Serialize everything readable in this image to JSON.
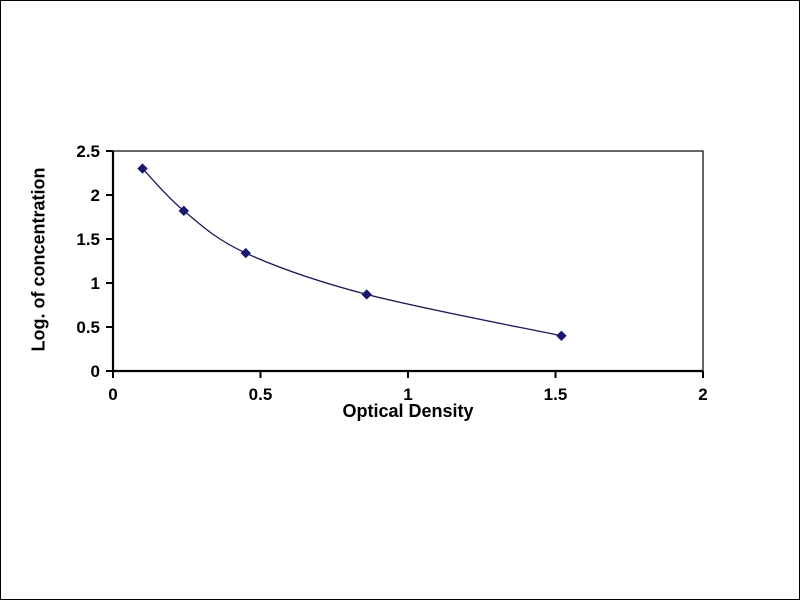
{
  "chart_data": {
    "type": "scatter",
    "title": "",
    "xlabel": "Optical Density",
    "ylabel": "Log. of concentration",
    "x": [
      0.1,
      0.24,
      0.45,
      0.86,
      1.52
    ],
    "y": [
      2.3,
      1.82,
      1.34,
      0.87,
      0.4
    ],
    "xlim": [
      0,
      2
    ],
    "ylim": [
      0,
      2.5
    ],
    "xticks": [
      "0",
      "0.5",
      "1",
      "1.5",
      "2"
    ],
    "yticks": [
      "0",
      "0.5",
      "1",
      "1.5",
      "2",
      "2.5"
    ],
    "grid": false,
    "legend": "none",
    "marker": "diamond",
    "line_style": "smooth",
    "colors": {
      "line": "#1a1a5a",
      "marker": "#191970",
      "axis": "#000000",
      "plot_background": "#ffffff",
      "page_background": "#ffffff",
      "border": "#000000"
    }
  }
}
